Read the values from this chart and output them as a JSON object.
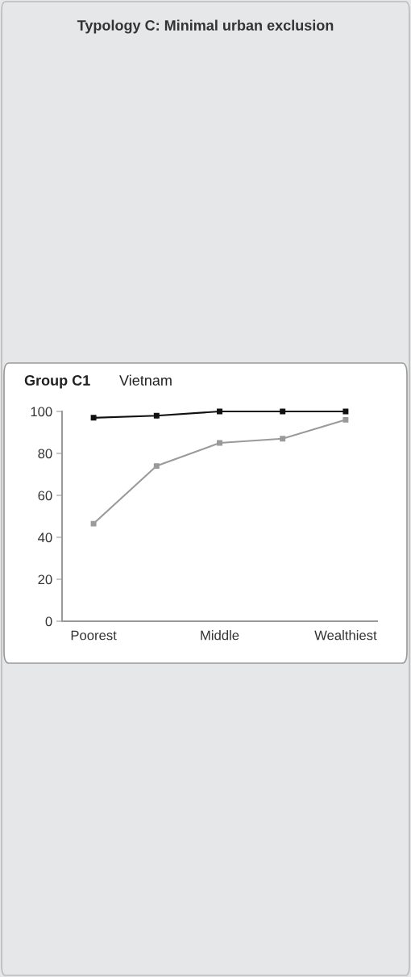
{
  "chart_data": {
    "type": "line",
    "title": "Typology C: Minimal urban exclusion",
    "subtitle": "Group C1",
    "annotations": [
      "Vietnam"
    ],
    "categories": [
      "Poorest",
      null,
      "Middle",
      null,
      "Wealthiest"
    ],
    "series": [
      {
        "color": "#111111",
        "values": [
          97,
          98,
          100,
          100,
          100
        ]
      },
      {
        "color": "#9a9a9a",
        "values": [
          46.5,
          74,
          85,
          87,
          96
        ]
      }
    ],
    "ylim": [
      0,
      100
    ],
    "yticks": [
      0,
      20,
      40,
      60,
      80,
      100
    ],
    "grid": false,
    "marker": "square",
    "line_style": "solid"
  }
}
